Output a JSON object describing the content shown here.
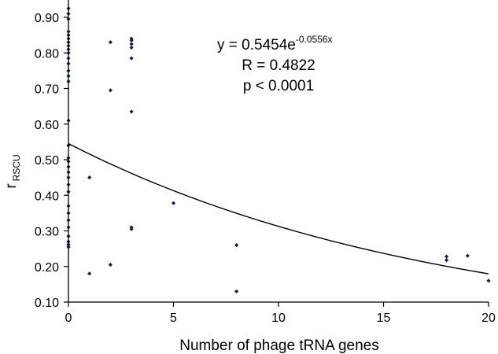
{
  "chart_data": {
    "type": "scatter",
    "xlabel": "Number of phage tRNA genes",
    "ylabel_main": "r",
    "ylabel_sub": "RSCU",
    "xlim": [
      0,
      20
    ],
    "ylim": [
      0.1,
      0.95
    ],
    "x_ticks": [
      0,
      5,
      10,
      15,
      20
    ],
    "x_tick_labels": [
      "0",
      "5",
      "10",
      "15",
      "20"
    ],
    "y_ticks": [
      0.1,
      0.2,
      0.3,
      0.4,
      0.5,
      0.6,
      0.7,
      0.8,
      0.9
    ],
    "y_tick_labels": [
      "0.10",
      "0.20",
      "0.30",
      "0.40",
      "0.50",
      "0.60",
      "0.70",
      "0.80",
      "0.90"
    ],
    "grid": false,
    "legend": "none",
    "marker_color": "#1a1f4a",
    "curve_color": "#000000",
    "series": [
      {
        "points": [
          [
            0,
            0.925
          ],
          [
            0,
            0.91
          ],
          [
            0,
            0.895
          ],
          [
            0,
            0.86
          ],
          [
            0,
            0.85
          ],
          [
            0,
            0.84
          ],
          [
            0,
            0.83
          ],
          [
            0,
            0.82
          ],
          [
            0,
            0.81
          ],
          [
            0,
            0.8
          ],
          [
            0,
            0.785
          ],
          [
            0,
            0.77
          ],
          [
            0,
            0.75
          ],
          [
            0,
            0.735
          ],
          [
            0,
            0.72
          ],
          [
            0,
            0.61
          ],
          [
            0,
            0.54
          ],
          [
            0,
            0.505
          ],
          [
            0,
            0.495
          ],
          [
            0,
            0.48
          ],
          [
            0,
            0.465
          ],
          [
            0,
            0.45
          ],
          [
            0,
            0.43
          ],
          [
            0,
            0.41
          ],
          [
            0,
            0.37
          ],
          [
            0,
            0.35
          ],
          [
            0,
            0.33
          ],
          [
            0,
            0.31
          ],
          [
            0,
            0.285
          ],
          [
            0,
            0.27
          ],
          [
            0,
            0.262
          ],
          [
            0,
            0.255
          ],
          [
            1,
            0.45
          ],
          [
            1,
            0.18
          ],
          [
            2,
            0.83
          ],
          [
            2,
            0.695
          ],
          [
            2,
            0.205
          ],
          [
            3,
            0.84
          ],
          [
            3,
            0.835
          ],
          [
            3,
            0.825
          ],
          [
            3,
            0.815
          ],
          [
            3,
            0.785
          ],
          [
            3,
            0.635
          ],
          [
            3,
            0.31
          ],
          [
            3,
            0.305
          ],
          [
            5,
            0.378
          ],
          [
            8,
            0.26
          ],
          [
            8,
            0.13
          ],
          [
            18,
            0.228
          ],
          [
            18,
            0.218
          ],
          [
            19,
            0.23
          ],
          [
            20,
            0.16
          ]
        ]
      }
    ],
    "fit": {
      "type": "exponential",
      "a": 0.5454,
      "b": -0.0556,
      "x_range": [
        0,
        20
      ]
    },
    "annotations": {
      "equation_prefix": "y = 0.5454e",
      "equation_exponent": "-0.0556x",
      "r_text": "R = 0.4822",
      "p_text": "p < 0.0001"
    }
  }
}
